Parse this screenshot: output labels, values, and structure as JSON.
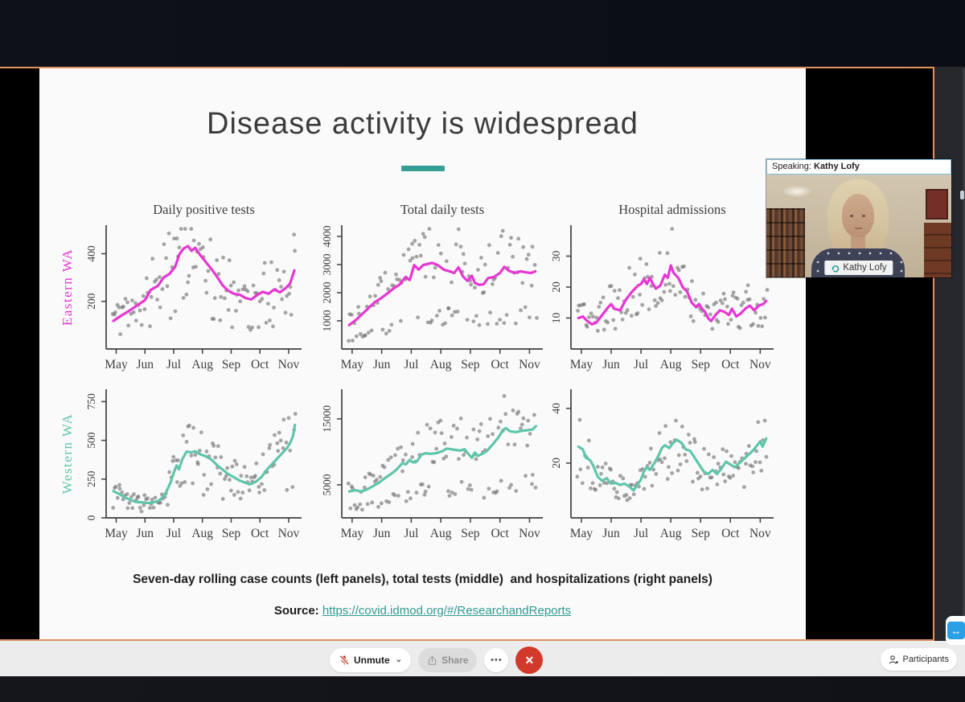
{
  "app": {
    "speaking": {
      "prefix": "Speaking:",
      "name": "Kathy Lofy"
    },
    "name_tag": "Kathy Lofy",
    "toolbar": {
      "unmute": "Unmute",
      "share": "Share",
      "participants": "Participants"
    },
    "icons": {
      "more": "•••",
      "leave": "✕",
      "chevron": "⌄",
      "tv": "↔"
    },
    "colors": {
      "share_border": "#e2925f",
      "leave_red": "#d13a2a",
      "tv_blue": "#2aa0e4"
    }
  },
  "slide": {
    "title": "Disease activity is widespread",
    "caption": "Seven-day rolling case counts (left panels), total tests (middle)  and hospitalizations (right panels)",
    "source_label": "Source:",
    "source_link": "https://covid.idmod.org/#/ResearchandReports",
    "divider_color": "#379e95",
    "row_labels": [
      {
        "text": "Eastern WA",
        "color": "#e637d2"
      },
      {
        "text": "Western WA",
        "color": "#5fc6aa"
      }
    ],
    "col_titles": [
      "Daily positive tests",
      "Total daily tests",
      "Hospital admissions"
    ]
  },
  "chart_data": [
    {
      "id": 0,
      "type": "scatter",
      "title": "Daily positive tests",
      "row_label": "Eastern WA",
      "line_color": "#e637d2",
      "dot_color": "#707070",
      "x_tick_labels": [
        "May",
        "Jun",
        "Jul",
        "Aug",
        "Sep",
        "Oct",
        "Nov"
      ],
      "ylim": [
        0,
        520
      ],
      "yticks": [
        {
          "v": 200,
          "label": "200"
        },
        {
          "v": 400,
          "label": "400"
        }
      ],
      "line": [
        [
          -0.1,
          118
        ],
        [
          0.15,
          138
        ],
        [
          0.45,
          160
        ],
        [
          0.75,
          185
        ],
        [
          1.0,
          205
        ],
        [
          1.2,
          248
        ],
        [
          1.45,
          265
        ],
        [
          1.65,
          300
        ],
        [
          1.85,
          315
        ],
        [
          2.05,
          345
        ],
        [
          2.2,
          398
        ],
        [
          2.35,
          422
        ],
        [
          2.5,
          432
        ],
        [
          2.62,
          412
        ],
        [
          2.75,
          425
        ],
        [
          2.9,
          398
        ],
        [
          3.1,
          368
        ],
        [
          3.3,
          338
        ],
        [
          3.5,
          305
        ],
        [
          3.7,
          268
        ],
        [
          3.9,
          244
        ],
        [
          4.1,
          232
        ],
        [
          4.3,
          228
        ],
        [
          4.5,
          214
        ],
        [
          4.7,
          208
        ],
        [
          4.9,
          226
        ],
        [
          5.1,
          240
        ],
        [
          5.3,
          232
        ],
        [
          5.5,
          250
        ],
        [
          5.7,
          238
        ],
        [
          5.9,
          256
        ],
        [
          6.05,
          275
        ],
        [
          6.2,
          330
        ]
      ],
      "scatter": {
        "count": 115,
        "seed": 11,
        "low_frac": 0.25,
        "low": [
          0.35,
          0.72
        ],
        "high": [
          0.78,
          1.55
        ]
      }
    },
    {
      "id": 1,
      "type": "scatter",
      "title": "Total daily tests",
      "row_label": null,
      "line_color": "#e637d2",
      "dot_color": "#707070",
      "x_tick_labels": [
        "May",
        "Jun",
        "Jul",
        "Aug",
        "Sep",
        "Oct",
        "Nov"
      ],
      "ylim": [
        0,
        4400
      ],
      "yticks": [
        {
          "v": 1000,
          "label": "1000"
        },
        {
          "v": 2000,
          "label": "2000"
        },
        {
          "v": 3000,
          "label": "3000"
        },
        {
          "v": 4000,
          "label": "4000"
        }
      ],
      "line": [
        [
          -0.1,
          850
        ],
        [
          0.15,
          1050
        ],
        [
          0.45,
          1350
        ],
        [
          0.75,
          1650
        ],
        [
          1.0,
          1820
        ],
        [
          1.2,
          1980
        ],
        [
          1.4,
          2150
        ],
        [
          1.6,
          2280
        ],
        [
          1.8,
          2550
        ],
        [
          1.95,
          2450
        ],
        [
          2.1,
          2980
        ],
        [
          2.25,
          2820
        ],
        [
          2.4,
          2980
        ],
        [
          2.55,
          3020
        ],
        [
          2.7,
          3060
        ],
        [
          2.9,
          2980
        ],
        [
          3.1,
          2820
        ],
        [
          3.3,
          2760
        ],
        [
          3.45,
          2700
        ],
        [
          3.6,
          2900
        ],
        [
          3.75,
          2580
        ],
        [
          3.9,
          2420
        ],
        [
          4.05,
          2600
        ],
        [
          4.15,
          2350
        ],
        [
          4.3,
          2280
        ],
        [
          4.45,
          2300
        ],
        [
          4.6,
          2520
        ],
        [
          4.8,
          2560
        ],
        [
          5.0,
          2700
        ],
        [
          5.15,
          2920
        ],
        [
          5.3,
          2780
        ],
        [
          5.5,
          2700
        ],
        [
          5.7,
          2760
        ],
        [
          5.9,
          2720
        ],
        [
          6.05,
          2700
        ],
        [
          6.2,
          2760
        ]
      ],
      "scatter": {
        "count": 120,
        "seed": 22,
        "low_frac": 0.3,
        "low": [
          0.28,
          0.55
        ],
        "high": [
          0.82,
          1.5
        ]
      }
    },
    {
      "id": 2,
      "type": "scatter",
      "title": "Hospital admissions",
      "row_label": null,
      "line_color": "#e637d2",
      "dot_color": "#707070",
      "x_tick_labels": [
        "May",
        "Jun",
        "Jul",
        "Aug",
        "Sep",
        "Oct",
        "Nov"
      ],
      "ylim": [
        0,
        40
      ],
      "yticks": [
        {
          "v": 10,
          "label": "10"
        },
        {
          "v": 20,
          "label": "20"
        },
        {
          "v": 30,
          "label": "30"
        }
      ],
      "line": [
        [
          -0.1,
          10
        ],
        [
          0.05,
          10.5
        ],
        [
          0.2,
          9
        ],
        [
          0.35,
          8
        ],
        [
          0.5,
          8.5
        ],
        [
          0.7,
          11
        ],
        [
          0.9,
          13.5
        ],
        [
          1.0,
          14.5
        ],
        [
          1.1,
          13
        ],
        [
          1.3,
          12.5
        ],
        [
          1.5,
          16
        ],
        [
          1.7,
          18.5
        ],
        [
          1.9,
          20.5
        ],
        [
          2.0,
          21
        ],
        [
          2.1,
          22.5
        ],
        [
          2.2,
          21
        ],
        [
          2.3,
          23
        ],
        [
          2.4,
          21
        ],
        [
          2.5,
          19.5
        ],
        [
          2.65,
          20.5
        ],
        [
          2.8,
          24
        ],
        [
          2.9,
          23
        ],
        [
          3.0,
          27
        ],
        [
          3.1,
          24.5
        ],
        [
          3.25,
          23
        ],
        [
          3.4,
          20
        ],
        [
          3.55,
          18.5
        ],
        [
          3.7,
          15
        ],
        [
          3.85,
          13.5
        ],
        [
          3.95,
          14.5
        ],
        [
          4.05,
          13
        ],
        [
          4.15,
          12
        ],
        [
          4.25,
          10
        ],
        [
          4.35,
          9
        ],
        [
          4.5,
          11
        ],
        [
          4.65,
          12.5
        ],
        [
          4.8,
          12
        ],
        [
          4.95,
          11
        ],
        [
          5.05,
          13
        ],
        [
          5.2,
          10.5
        ],
        [
          5.35,
          11.5
        ],
        [
          5.5,
          13
        ],
        [
          5.65,
          14
        ],
        [
          5.8,
          12.5
        ],
        [
          5.95,
          14
        ],
        [
          6.1,
          14.5
        ],
        [
          6.2,
          15.5
        ]
      ],
      "scatter": {
        "count": 115,
        "seed": 33,
        "low_frac": 0.3,
        "low": [
          0.5,
          0.85
        ],
        "high": [
          0.72,
          1.55
        ]
      }
    },
    {
      "id": 3,
      "type": "scatter",
      "title": null,
      "row_label": "Western WA",
      "line_color": "#5fc6aa",
      "dot_color": "#707070",
      "x_tick_labels": [
        "May",
        "Jun",
        "Jul",
        "Aug",
        "Sep",
        "Oct",
        "Nov"
      ],
      "ylim": [
        0,
        830
      ],
      "yticks": [
        {
          "v": 0,
          "label": "0"
        },
        {
          "v": 250,
          "label": "250"
        },
        {
          "v": 500,
          "label": "500"
        },
        {
          "v": 750,
          "label": "750"
        }
      ],
      "line": [
        [
          -0.1,
          172
        ],
        [
          0.1,
          155
        ],
        [
          0.3,
          132
        ],
        [
          0.5,
          116
        ],
        [
          0.7,
          102
        ],
        [
          0.9,
          100
        ],
        [
          1.1,
          96
        ],
        [
          1.3,
          100
        ],
        [
          1.5,
          112
        ],
        [
          1.7,
          150
        ],
        [
          1.9,
          232
        ],
        [
          2.0,
          290
        ],
        [
          2.1,
          338
        ],
        [
          2.18,
          312
        ],
        [
          2.3,
          378
        ],
        [
          2.45,
          428
        ],
        [
          2.6,
          422
        ],
        [
          2.75,
          430
        ],
        [
          2.9,
          412
        ],
        [
          3.1,
          398
        ],
        [
          3.3,
          378
        ],
        [
          3.5,
          342
        ],
        [
          3.7,
          312
        ],
        [
          3.9,
          282
        ],
        [
          4.1,
          262
        ],
        [
          4.3,
          240
        ],
        [
          4.5,
          226
        ],
        [
          4.65,
          216
        ],
        [
          4.85,
          232
        ],
        [
          5.05,
          262
        ],
        [
          5.25,
          312
        ],
        [
          5.45,
          352
        ],
        [
          5.6,
          382
        ],
        [
          5.8,
          422
        ],
        [
          5.95,
          452
        ],
        [
          6.05,
          482
        ],
        [
          6.15,
          525
        ],
        [
          6.22,
          600
        ]
      ],
      "scatter": {
        "count": 120,
        "seed": 44,
        "low_frac": 0.25,
        "low": [
          0.35,
          0.7
        ],
        "high": [
          0.8,
          1.5
        ]
      }
    },
    {
      "id": 4,
      "type": "scatter",
      "title": null,
      "row_label": null,
      "line_color": "#5fc6aa",
      "dot_color": "#707070",
      "x_tick_labels": [
        "May",
        "Jun",
        "Jul",
        "Aug",
        "Sep",
        "Oct",
        "Nov"
      ],
      "ylim": [
        0,
        19500
      ],
      "yticks": [
        {
          "v": 5000,
          "label": "5000"
        },
        {
          "v": 15000,
          "label": "15000"
        }
      ],
      "line": [
        [
          -0.1,
          4000
        ],
        [
          0.1,
          4200
        ],
        [
          0.3,
          4000
        ],
        [
          0.5,
          4300
        ],
        [
          0.7,
          4800
        ],
        [
          0.9,
          5300
        ],
        [
          1.1,
          6000
        ],
        [
          1.3,
          6600
        ],
        [
          1.5,
          7300
        ],
        [
          1.7,
          8300
        ],
        [
          1.82,
          8100
        ],
        [
          1.95,
          8800
        ],
        [
          2.05,
          8400
        ],
        [
          2.2,
          8600
        ],
        [
          2.35,
          9600
        ],
        [
          2.5,
          9800
        ],
        [
          2.65,
          9700
        ],
        [
          2.85,
          9800
        ],
        [
          3.05,
          10100
        ],
        [
          3.2,
          10500
        ],
        [
          3.35,
          10400
        ],
        [
          3.5,
          10300
        ],
        [
          3.65,
          10200
        ],
        [
          3.8,
          10400
        ],
        [
          3.95,
          9600
        ],
        [
          4.05,
          9100
        ],
        [
          4.15,
          9900
        ],
        [
          4.25,
          9400
        ],
        [
          4.4,
          9700
        ],
        [
          4.55,
          10100
        ],
        [
          4.75,
          11100
        ],
        [
          4.95,
          12200
        ],
        [
          5.1,
          13300
        ],
        [
          5.2,
          13600
        ],
        [
          5.35,
          13100
        ],
        [
          5.55,
          13000
        ],
        [
          5.75,
          13200
        ],
        [
          5.95,
          13300
        ],
        [
          6.1,
          13400
        ],
        [
          6.22,
          13900
        ]
      ],
      "scatter": {
        "count": 120,
        "seed": 55,
        "low_frac": 0.3,
        "low": [
          0.3,
          0.55
        ],
        "high": [
          0.82,
          1.5
        ]
      }
    },
    {
      "id": 5,
      "type": "scatter",
      "title": null,
      "row_label": null,
      "line_color": "#5fc6aa",
      "dot_color": "#707070",
      "x_tick_labels": [
        "May",
        "Jun",
        "Jul",
        "Aug",
        "Sep",
        "Oct",
        "Nov"
      ],
      "ylim": [
        0,
        47
      ],
      "yticks": [
        {
          "v": 20,
          "label": "20"
        },
        {
          "v": 40,
          "label": "40"
        }
      ],
      "line": [
        [
          -0.1,
          26
        ],
        [
          0.05,
          25
        ],
        [
          0.15,
          22
        ],
        [
          0.3,
          21
        ],
        [
          0.4,
          19
        ],
        [
          0.55,
          15
        ],
        [
          0.7,
          13.5
        ],
        [
          0.85,
          14.5
        ],
        [
          1.0,
          12.5
        ],
        [
          1.15,
          12.8
        ],
        [
          1.3,
          12
        ],
        [
          1.45,
          12.5
        ],
        [
          1.6,
          11.5
        ],
        [
          1.75,
          10
        ],
        [
          1.9,
          12.5
        ],
        [
          2.0,
          14
        ],
        [
          2.1,
          17
        ],
        [
          2.2,
          18.5
        ],
        [
          2.3,
          17.5
        ],
        [
          2.45,
          20
        ],
        [
          2.6,
          23
        ],
        [
          2.7,
          25.5
        ],
        [
          2.8,
          26.5
        ],
        [
          2.95,
          25.5
        ],
        [
          3.05,
          27
        ],
        [
          3.2,
          28.5
        ],
        [
          3.35,
          27.5
        ],
        [
          3.5,
          25
        ],
        [
          3.65,
          24.5
        ],
        [
          3.8,
          22
        ],
        [
          3.95,
          19.5
        ],
        [
          4.1,
          17
        ],
        [
          4.25,
          16
        ],
        [
          4.4,
          17.5
        ],
        [
          4.55,
          16
        ],
        [
          4.7,
          18
        ],
        [
          4.85,
          20.5
        ],
        [
          5.0,
          19.5
        ],
        [
          5.15,
          18.5
        ],
        [
          5.3,
          20
        ],
        [
          5.45,
          21.5
        ],
        [
          5.6,
          23
        ],
        [
          5.75,
          24.5
        ],
        [
          5.9,
          26.5
        ],
        [
          6.0,
          28
        ],
        [
          6.08,
          26
        ],
        [
          6.2,
          29
        ]
      ],
      "scatter": {
        "count": 115,
        "seed": 66,
        "low_frac": 0.3,
        "low": [
          0.5,
          0.85
        ],
        "high": [
          0.72,
          1.5
        ]
      }
    }
  ]
}
